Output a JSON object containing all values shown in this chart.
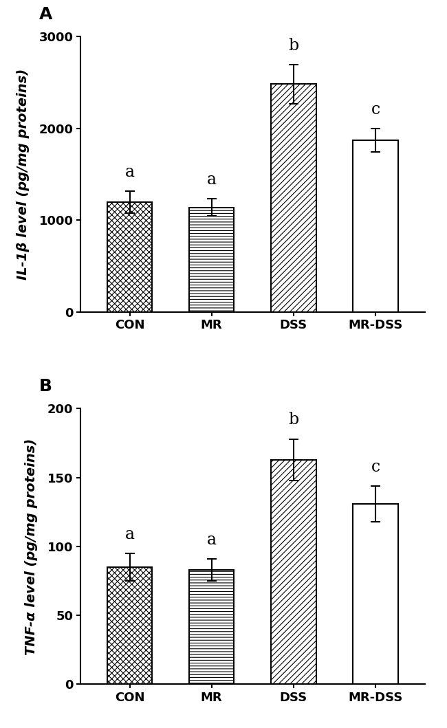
{
  "panel_A": {
    "title": "A",
    "categories": [
      "CON",
      "MR",
      "DSS",
      "MR-DSS"
    ],
    "values": [
      1200,
      1140,
      2480,
      1870
    ],
    "errors": [
      120,
      95,
      215,
      125
    ],
    "letters": [
      "a",
      "a",
      "b",
      "c"
    ],
    "ylabel": "IL-1β level (pg/mg proteins)",
    "ylim": [
      0,
      3000
    ],
    "yticks": [
      0,
      1000,
      2000,
      3000
    ]
  },
  "panel_B": {
    "title": "B",
    "categories": [
      "CON",
      "MR",
      "DSS",
      "MR-DSS"
    ],
    "values": [
      85,
      83,
      163,
      131
    ],
    "errors": [
      10,
      8,
      15,
      13
    ],
    "letters": [
      "a",
      "a",
      "b",
      "c"
    ],
    "ylabel": "TNF-α level (pg/mg proteins)",
    "ylim": [
      0,
      200
    ],
    "yticks": [
      0,
      50,
      100,
      150,
      200
    ]
  },
  "bar_width": 0.55,
  "capsize": 5,
  "letter_fontsize": 17,
  "label_fontsize": 14,
  "tick_fontsize": 13,
  "title_fontsize": 18,
  "edgecolor": "black",
  "background_color": "white"
}
